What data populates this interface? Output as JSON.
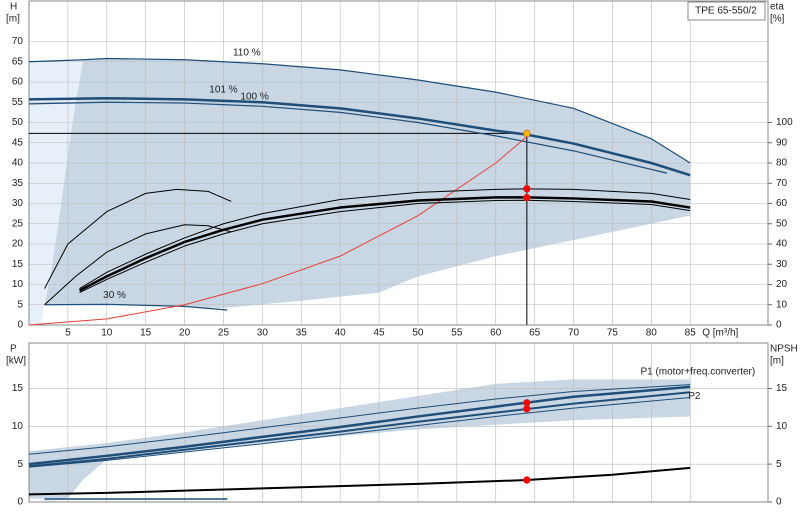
{
  "chart_data": [
    {
      "type": "line",
      "title": "TPE 65-550/2",
      "ylabel": "H",
      "yunit": "[m]",
      "y2label": "eta",
      "y2unit": "[%]",
      "xlabel": "Q [m³/h]",
      "xlim": [
        0,
        95
      ],
      "xticks": [
        5,
        10,
        15,
        20,
        25,
        30,
        35,
        40,
        45,
        50,
        55,
        60,
        65,
        70,
        75,
        80,
        85
      ],
      "ylim": [
        0,
        80
      ],
      "yticks": [
        0,
        5,
        10,
        15,
        20,
        25,
        30,
        35,
        40,
        45,
        50,
        55,
        60,
        65,
        70
      ],
      "y2lim": [
        0,
        160
      ],
      "y2ticks": [
        0,
        10,
        20,
        30,
        40,
        50,
        60,
        70,
        80,
        90,
        100
      ],
      "grid": true,
      "areas": [
        {
          "color": "#e7eff8",
          "x": [
            0,
            0,
            7,
            6,
            5,
            4,
            3,
            2,
            1.5
          ],
          "values": [
            0,
            65,
            65.5,
            55,
            42,
            28,
            15,
            5,
            0
          ]
        },
        {
          "color": "#c9d6e3",
          "x": [
            7,
            10,
            20,
            30,
            40,
            50,
            60,
            70,
            80,
            85,
            85,
            70,
            60,
            50,
            45,
            35,
            25,
            15,
            10,
            2,
            3,
            4,
            5,
            6
          ],
          "values": [
            65.5,
            65.8,
            65.5,
            64.5,
            63,
            60.5,
            57.5,
            53.5,
            46,
            40,
            27,
            21,
            17,
            12,
            8,
            6,
            4.2,
            4.8,
            5.1,
            5,
            15,
            28,
            42,
            55
          ]
        }
      ],
      "series": [
        {
          "name": "110 %",
          "color": "#1f4e79",
          "width": 1.2,
          "x": [
            0,
            7,
            10,
            20,
            30,
            40,
            50,
            60,
            70,
            80,
            85
          ],
          "values": [
            65,
            65.5,
            65.8,
            65.5,
            64.5,
            63,
            60.5,
            57.5,
            53.5,
            46,
            40
          ]
        },
        {
          "name": "101 %",
          "color": "#1f4e79",
          "width": 2.5,
          "x": [
            0,
            10,
            20,
            30,
            40,
            50,
            60,
            64,
            70,
            80,
            85
          ],
          "values": [
            55.7,
            56,
            55.7,
            55,
            53.5,
            51,
            48,
            47,
            44.8,
            40,
            37
          ]
        },
        {
          "name": "100 %",
          "color": "#1f4e79",
          "width": 1.2,
          "x": [
            0,
            10,
            20,
            30,
            40,
            50,
            60,
            70,
            82
          ],
          "values": [
            54.6,
            55,
            54.8,
            54,
            52.5,
            50,
            46.7,
            43,
            37.5
          ]
        },
        {
          "name": "30 %",
          "color": "#1f4e79",
          "width": 1.2,
          "x": [
            2,
            10,
            20,
            25.5
          ],
          "values": [
            5,
            5.1,
            4.6,
            3.7
          ]
        },
        {
          "color": "#e8413a",
          "width": 1,
          "x": [
            0,
            10,
            20,
            30,
            40,
            50,
            60,
            64
          ],
          "values": [
            0,
            1.5,
            5,
            10.2,
            17,
            27,
            40,
            46.5
          ]
        },
        {
          "color": "#000000",
          "width": 2.5,
          "axis": "y2",
          "x": [
            6.5,
            10,
            15,
            20,
            25,
            30,
            40,
            50,
            60,
            64,
            70,
            80,
            85
          ],
          "values": [
            17,
            24,
            33,
            41,
            47,
            52,
            58,
            61.5,
            63,
            63,
            62.5,
            61,
            58
          ]
        },
        {
          "color": "#000000",
          "width": 1,
          "axis": "y2",
          "x": [
            6.5,
            10,
            15,
            20,
            25,
            30,
            40,
            50,
            60,
            64,
            70,
            80,
            85
          ],
          "values": [
            18,
            26,
            35,
            43,
            50,
            55,
            62,
            65.5,
            67,
            67.2,
            67,
            65,
            62
          ]
        },
        {
          "color": "#000000",
          "width": 1,
          "axis": "y2",
          "x": [
            6.5,
            10,
            15,
            20,
            25,
            30,
            40,
            50,
            60,
            64,
            70,
            80,
            85
          ],
          "values": [
            16,
            22.5,
            31,
            39,
            45,
            50,
            56,
            60,
            61.5,
            61.6,
            61,
            59.5,
            56.5
          ]
        },
        {
          "color": "#000000",
          "width": 1,
          "axis": "y2",
          "x": [
            2,
            5,
            10,
            15,
            19,
            23,
            26
          ],
          "values": [
            18,
            40,
            56,
            65,
            67,
            66,
            61
          ]
        },
        {
          "color": "#000000",
          "width": 1,
          "axis": "y2",
          "x": [
            2,
            6,
            10,
            15,
            20,
            23,
            26
          ],
          "values": [
            10,
            24,
            36,
            45,
            49.5,
            49,
            46
          ]
        }
      ],
      "markers": [
        {
          "color": "#f5b800",
          "x": 64,
          "y": 47.3
        },
        {
          "color": "#ff0000",
          "axis": "y2",
          "x": 64,
          "y": 67.3
        },
        {
          "color": "#ff0000",
          "axis": "y2",
          "x": 64,
          "y": 62.9
        }
      ]
    },
    {
      "type": "line",
      "ylabel": "P",
      "yunit": "[kW]",
      "y2label": "NPSH",
      "y2unit": "[m]",
      "xlim": [
        0,
        95
      ],
      "ylim": [
        0,
        21
      ],
      "yticks": [
        0,
        5,
        10,
        15
      ],
      "y2lim": [
        0,
        21
      ],
      "y2ticks": [
        0,
        5,
        10,
        15
      ],
      "grid": true,
      "areas": [
        {
          "color": "#e7eff8",
          "x": [
            0,
            0,
            7,
            5,
            3
          ],
          "values": [
            0.5,
            6.7,
            7.4,
            0.5,
            0
          ]
        },
        {
          "color": "#c9d6e3",
          "x": [
            0,
            10,
            20,
            30,
            40,
            50,
            60,
            70,
            85,
            85,
            70,
            50,
            30,
            10,
            7,
            5,
            0
          ],
          "values": [
            6.7,
            7.8,
            9.2,
            10.8,
            12.4,
            14,
            15.6,
            16.2,
            16.2,
            11.3,
            10.8,
            9.6,
            7.8,
            5.6,
            3,
            0.5,
            0.5
          ]
        }
      ],
      "series": [
        {
          "color": "#1f4e79",
          "width": 1,
          "x": [
            0,
            10,
            20,
            30,
            40,
            50,
            60,
            70,
            85
          ],
          "values": [
            6.3,
            7.3,
            8.5,
            9.8,
            11.1,
            12.4,
            13.6,
            14.6,
            15.5
          ]
        },
        {
          "name": "P1 (motor+freq.converter)",
          "color": "#1f4e79",
          "width": 2.5,
          "x": [
            0,
            10,
            20,
            30,
            40,
            50,
            60,
            70,
            85
          ],
          "values": [
            5,
            6.1,
            7.3,
            8.6,
            9.9,
            11.3,
            12.6,
            13.9,
            15.2
          ]
        },
        {
          "name": "P2",
          "color": "#1f4e79",
          "width": 2,
          "x": [
            0,
            10,
            20,
            30,
            40,
            50,
            60,
            70,
            85
          ],
          "values": [
            4.7,
            5.7,
            6.9,
            8.1,
            9.3,
            10.6,
            11.8,
            13,
            14.5
          ]
        },
        {
          "color": "#1f4e79",
          "width": 1,
          "x": [
            0,
            10,
            20,
            30,
            40,
            50,
            60,
            70,
            85
          ],
          "values": [
            4.6,
            5.5,
            6.6,
            7.7,
            8.9,
            10.1,
            11.3,
            12.4,
            13.8
          ]
        },
        {
          "color": "#1f4e79",
          "width": 1.5,
          "x": [
            2,
            25.5
          ],
          "values": [
            0.4,
            0.4
          ]
        },
        {
          "color": "#000000",
          "width": 2,
          "axis": "y2",
          "x": [
            0,
            10,
            20,
            30,
            40,
            50,
            64,
            75,
            85
          ],
          "values": [
            1,
            1.2,
            1.5,
            1.8,
            2.1,
            2.4,
            2.9,
            3.6,
            4.5
          ]
        }
      ],
      "markers": [
        {
          "color": "#ff0000",
          "x": 64,
          "y": 13.1
        },
        {
          "color": "#ff0000",
          "x": 64,
          "y": 12.3
        },
        {
          "color": "#ff0000",
          "axis": "y2",
          "x": 64,
          "y": 2.9
        }
      ]
    }
  ]
}
